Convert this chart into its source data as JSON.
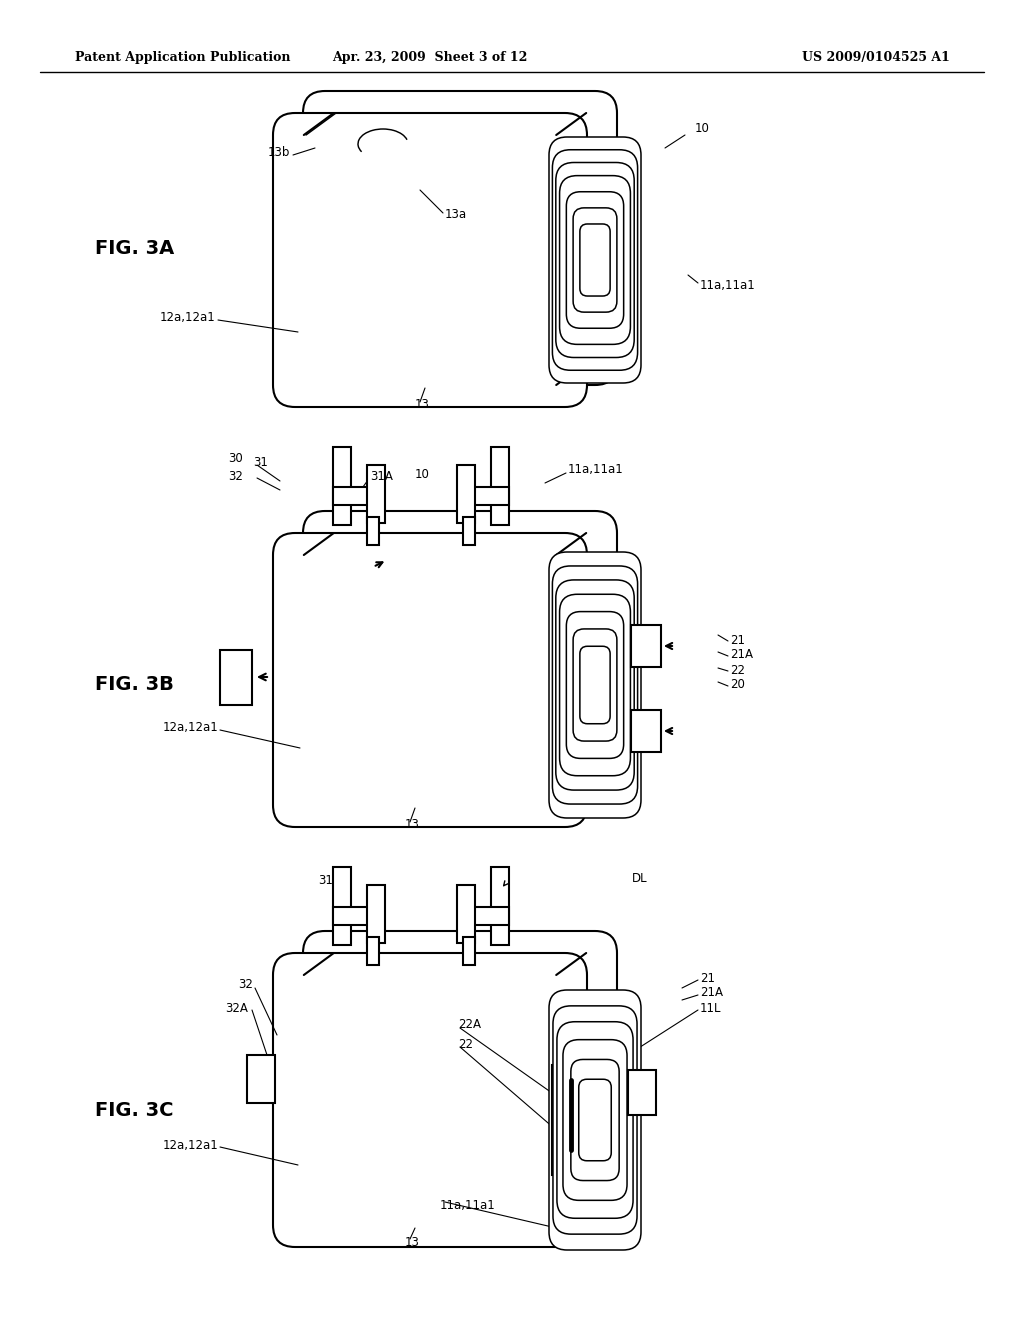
{
  "header_left": "Patent Application Publication",
  "header_mid": "Apr. 23, 2009  Sheet 3 of 12",
  "header_right": "US 2009/0104525 A1",
  "bg_color": "#ffffff",
  "lc": "#000000",
  "fig3A_label": "FIG. 3A",
  "fig3B_label": "FIG. 3B",
  "fig3C_label": "FIG. 3C",
  "fs_header": 9,
  "fs_fig": 14,
  "fs_annot": 8.5,
  "lw": 1.5
}
